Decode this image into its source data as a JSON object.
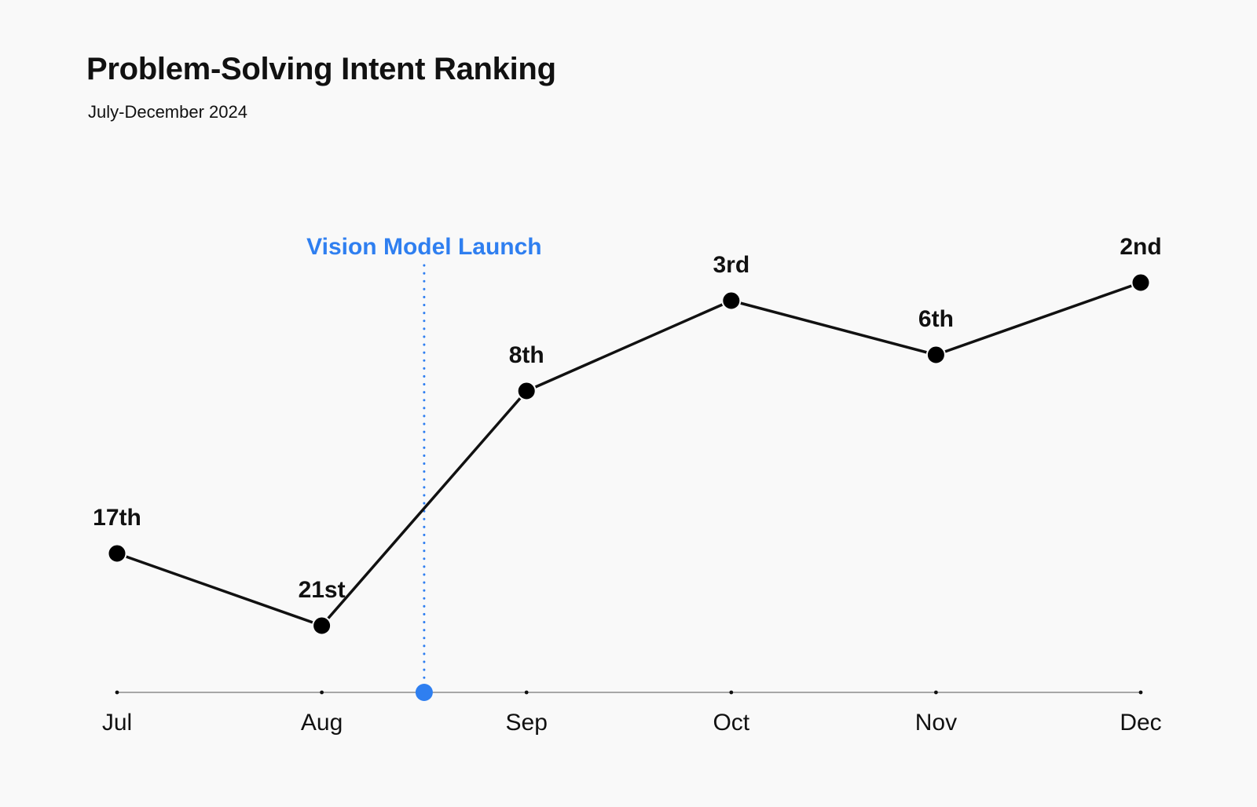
{
  "chart_data": {
    "type": "line",
    "title": "Problem-Solving Intent Ranking",
    "subtitle": "July-December 2024",
    "categories": [
      "Jul",
      "Aug",
      "Sep",
      "Oct",
      "Nov",
      "Dec"
    ],
    "series": [
      {
        "values": [
          17,
          21,
          8,
          3,
          6,
          2
        ],
        "labels": [
          "17th",
          "21st",
          "8th",
          "3rd",
          "6th",
          "2nd"
        ]
      }
    ],
    "y_inverted": true,
    "ylim": [
      1,
      23
    ],
    "grid": false,
    "annotation": {
      "label": "Vision Model Launch",
      "x_position": 1.5
    },
    "colors": {
      "line": "#111111",
      "accent": "#2f7ff0",
      "axis": "#555555",
      "background": "#f9f9f9"
    }
  }
}
